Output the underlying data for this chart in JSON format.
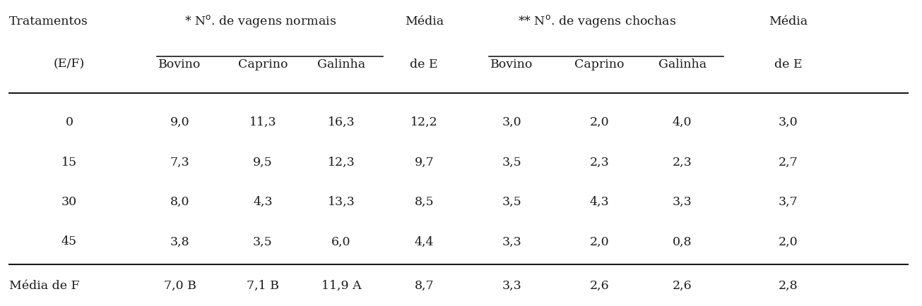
{
  "col_headers_row1_left": "Tratamentos",
  "col_headers_row1_normais": "* N$^\\mathrm{o}$. de vagens normais",
  "col_headers_row1_media1": "Média",
  "col_headers_row1_chochas": "** N$^\\mathrm{o}$. de vagens chochas",
  "col_headers_row1_media2": "Média",
  "col_headers_row2": [
    "(E/F)",
    "Bovino",
    "Caprino",
    "Galinha",
    "de E",
    "Bovino",
    "Caprino",
    "Galinha",
    "de E"
  ],
  "data_rows": [
    [
      "0",
      "9,0",
      "11,3",
      "16,3",
      "12,2",
      "3,0",
      "2,0",
      "4,0",
      "3,0"
    ],
    [
      "15",
      "7,3",
      "9,5",
      "12,3",
      "9,7",
      "3,5",
      "2,3",
      "2,3",
      "2,7"
    ],
    [
      "30",
      "8,0",
      "4,3",
      "13,3",
      "8,5",
      "3,5",
      "4,3",
      "3,3",
      "3,7"
    ],
    [
      "45",
      "3,8",
      "3,5",
      "6,0",
      "4,4",
      "3,3",
      "2,0",
      "0,8",
      "2,0"
    ]
  ],
  "footer_row": [
    "Média de F",
    "7,0 B",
    "7,1 B",
    "11,9 A",
    "8,7",
    "3,3",
    "2,6",
    "2,6",
    "2,8"
  ],
  "background_color": "#ffffff",
  "text_color": "#1a1a1a",
  "fontsize": 12.5,
  "figsize": [
    13.05,
    4.34
  ],
  "dpi": 100
}
